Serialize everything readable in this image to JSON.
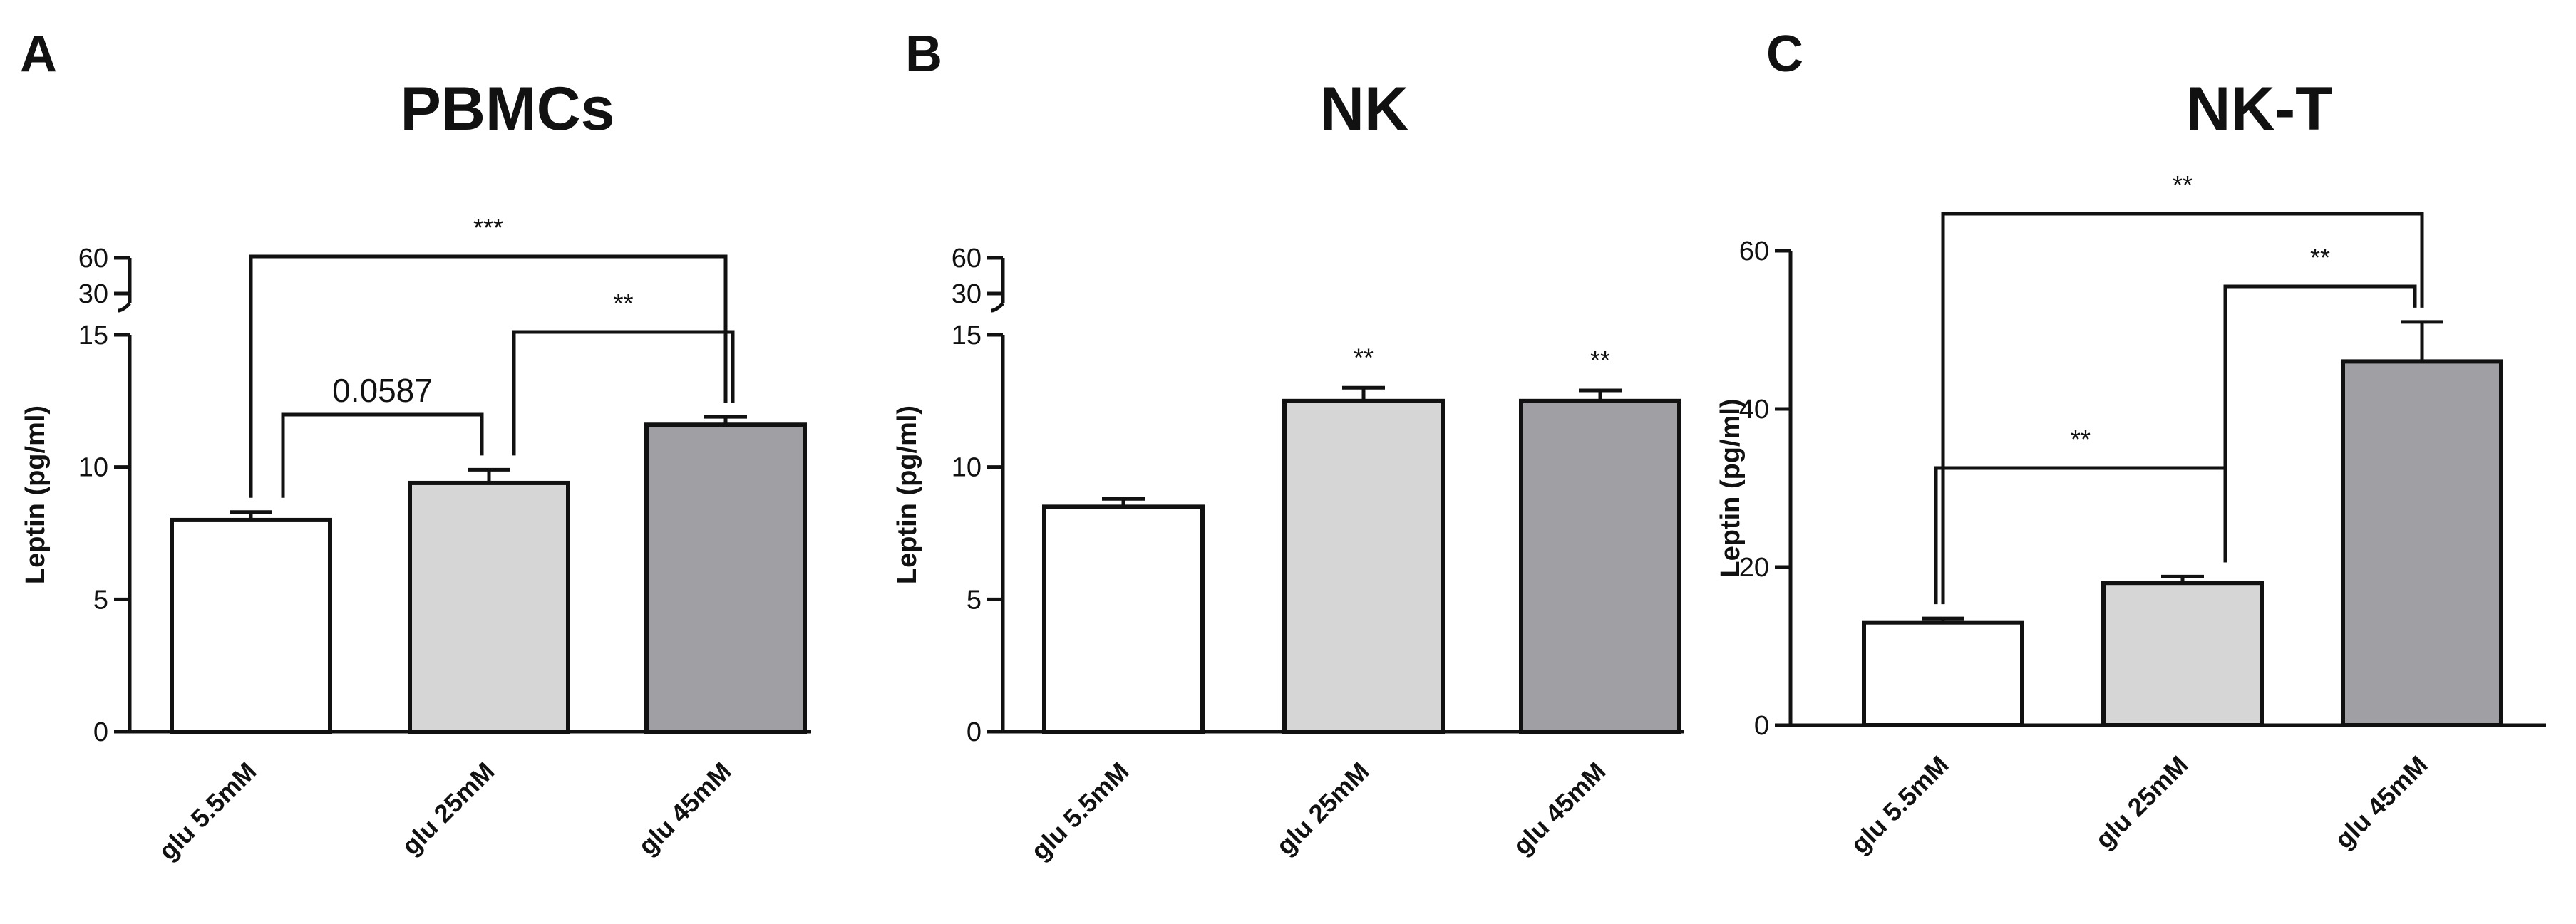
{
  "panels": [
    {
      "letter": "A",
      "title": "PBMCs",
      "ylabel": "Leptin (pg/ml)",
      "axis_break": true,
      "lower_ticks": [
        "0",
        "5",
        "10",
        "15"
      ],
      "upper_ticks": [
        "30",
        "60"
      ],
      "tick_values": [
        0,
        5,
        10,
        15
      ],
      "upper_tick_values": [
        30,
        60
      ]
    },
    {
      "letter": "B",
      "title": "NK",
      "ylabel": "Leptin (pg/ml)",
      "axis_break": true,
      "lower_ticks": [
        "0",
        "5",
        "10",
        "15"
      ],
      "upper_ticks": [
        "30",
        "60"
      ],
      "tick_values": [
        0,
        5,
        10,
        15
      ],
      "upper_tick_values": [
        30,
        60
      ]
    },
    {
      "letter": "C",
      "title": "NK-T",
      "ylabel": "Leptin (pg/ml)",
      "axis_break": false,
      "lower_ticks": [
        "0",
        "20",
        "40",
        "60"
      ],
      "upper_ticks": [],
      "tick_values": [
        0,
        20,
        40,
        60
      ],
      "upper_tick_values": []
    }
  ],
  "chart_data": [
    {
      "type": "bar",
      "title": "PBMCs",
      "ylabel": "Leptin (pg/ml)",
      "categories": [
        "glu 5.5mM",
        "glu 25mM",
        "glu 45mM"
      ],
      "values": [
        8.0,
        9.4,
        11.6
      ],
      "errors": [
        0.3,
        0.5,
        0.3
      ],
      "ylim": [
        0,
        15
      ],
      "y_break": [
        15,
        30
      ],
      "upper_ylim": [
        30,
        60
      ],
      "bar_colors": [
        "#ffffff",
        "#d6d6d6",
        "#a0a0a4"
      ],
      "annotations": [
        {
          "from": 1,
          "to": 2,
          "label": "0.0587"
        },
        {
          "from": 2,
          "to": 3,
          "label": "**"
        },
        {
          "from": 1,
          "to": 3,
          "label": "***"
        }
      ],
      "grid": false,
      "legend": "none"
    },
    {
      "type": "bar",
      "title": "NK",
      "ylabel": "Leptin (pg/ml)",
      "categories": [
        "glu 5.5mM",
        "glu 25mM",
        "glu 45mM"
      ],
      "values": [
        8.5,
        12.5,
        12.5
      ],
      "errors": [
        0.3,
        0.5,
        0.4
      ],
      "ylim": [
        0,
        15
      ],
      "y_break": [
        15,
        30
      ],
      "upper_ylim": [
        30,
        60
      ],
      "bar_colors": [
        "#ffffff",
        "#d6d6d6",
        "#a0a0a4"
      ],
      "bar_stars": [
        "",
        "**",
        "**"
      ],
      "grid": false,
      "legend": "none"
    },
    {
      "type": "bar",
      "title": "NK-T",
      "ylabel": "Leptin (pg/ml)",
      "categories": [
        "glu 5.5mM",
        "glu 25mM",
        "glu 45mM"
      ],
      "values": [
        13,
        18,
        46
      ],
      "errors": [
        0.5,
        0.8,
        5
      ],
      "ylim": [
        0,
        60
      ],
      "bar_colors": [
        "#ffffff",
        "#d6d6d6",
        "#a0a0a4"
      ],
      "annotations": [
        {
          "from": 1,
          "to": 2,
          "label": "**"
        },
        {
          "from": 2,
          "to": 3,
          "label": "**"
        },
        {
          "from": 1,
          "to": 3,
          "label": "**"
        }
      ],
      "grid": false,
      "legend": "none"
    }
  ]
}
